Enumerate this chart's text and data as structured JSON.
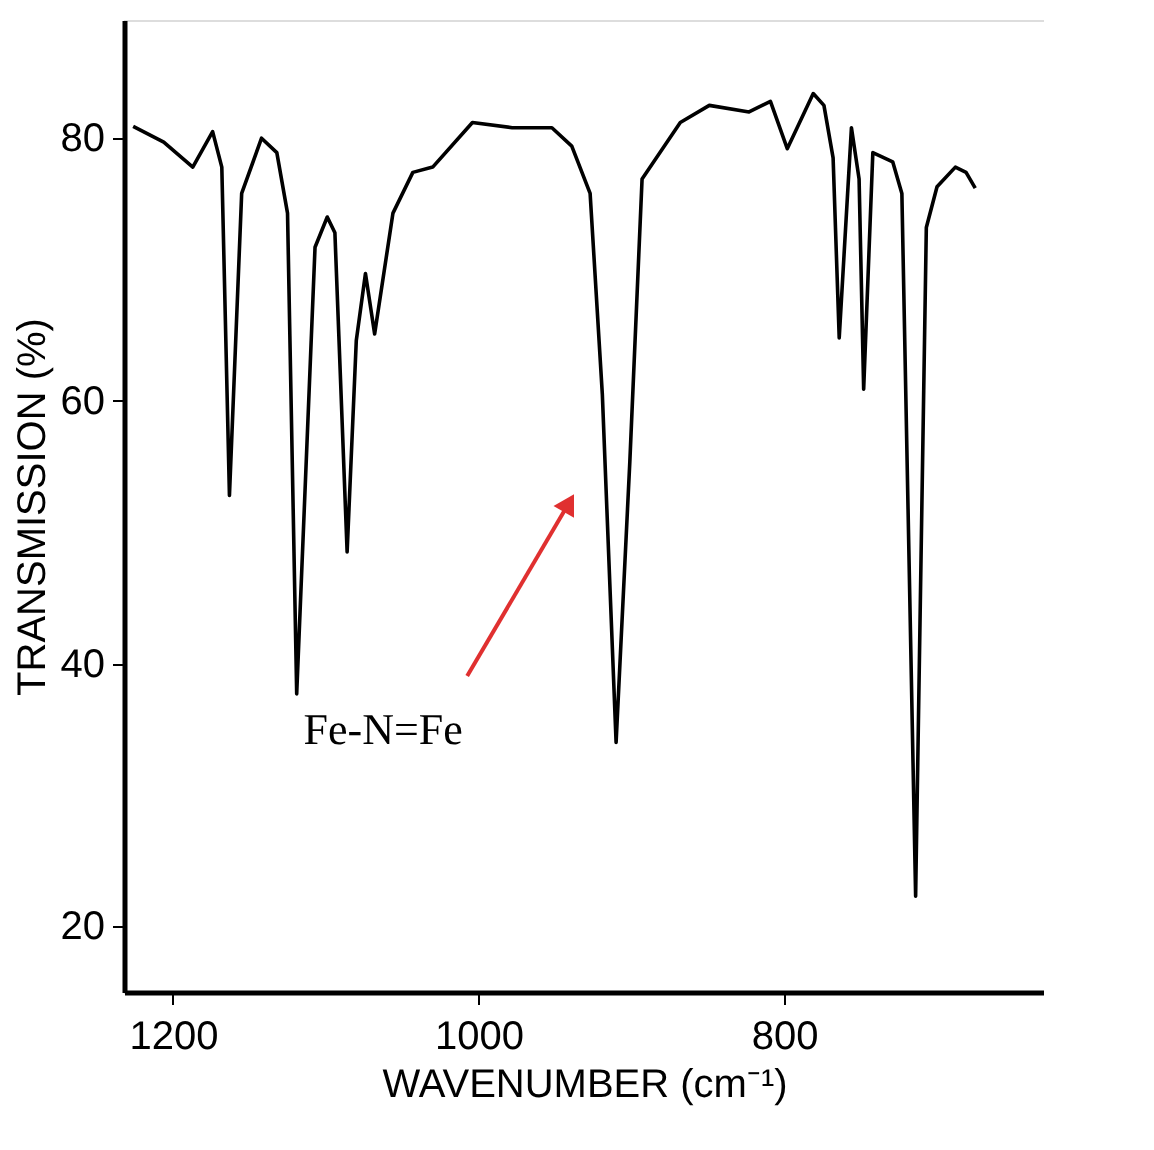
{
  "chart_data": {
    "type": "line",
    "xlabel": "WAVENUMBER (cm⁻¹)",
    "ylabel": "TRANSMISSION (%)",
    "xlim": [
      1232,
      630
    ],
    "xticks": [
      1200,
      1000,
      800
    ],
    "ylim": [
      15,
      89
    ],
    "yticks": [
      20,
      40,
      60,
      80
    ],
    "grid": false,
    "marker": "none",
    "line_style": "solid",
    "annotations": [
      {
        "text": "Fe-N=Fe",
        "x": 942,
        "y": 52
      }
    ],
    "series": [
      {
        "color": "#000000",
        "x": [
          1226,
          1206,
          1187,
          1174,
          1168,
          1163,
          1155,
          1142,
          1132,
          1125,
          1119,
          1107,
          1099,
          1094,
          1086,
          1080,
          1074,
          1068,
          1056,
          1043,
          1030,
          1004,
          978,
          952,
          939,
          927,
          919,
          910,
          901,
          893,
          868,
          849,
          823,
          809,
          798,
          781,
          774,
          768,
          764,
          756,
          751,
          748,
          742,
          729,
          723,
          714,
          707,
          700,
          688,
          681,
          675
        ],
        "values": [
          80.9,
          79.7,
          77.8,
          80.5,
          77.8,
          52.8,
          75.8,
          80.0,
          78.9,
          74.3,
          37.7,
          71.7,
          74.0,
          72.8,
          48.5,
          64.6,
          69.7,
          65.1,
          74.3,
          77.4,
          77.8,
          81.2,
          80.8,
          80.8,
          79.4,
          75.8,
          60.5,
          34.0,
          55.4,
          76.9,
          81.2,
          82.5,
          82.0,
          82.8,
          79.2,
          83.4,
          82.5,
          78.5,
          64.8,
          80.8,
          76.9,
          60.9,
          78.9,
          78.2,
          75.8,
          22.3,
          73.2,
          76.3,
          77.8,
          77.4,
          76.2
        ]
      }
    ]
  }
}
